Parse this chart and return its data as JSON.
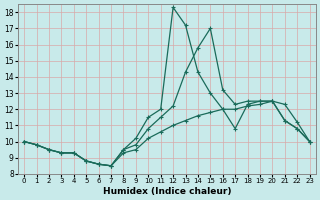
{
  "xlabel": "Humidex (Indice chaleur)",
  "background_color": "#c8eaea",
  "grid_color": "#d8a8a8",
  "line_color": "#1a6b5a",
  "xlim": [
    -0.5,
    23.5
  ],
  "ylim": [
    8.0,
    18.5
  ],
  "yticks": [
    8,
    9,
    10,
    11,
    12,
    13,
    14,
    15,
    16,
    17,
    18
  ],
  "xticks": [
    0,
    1,
    2,
    3,
    4,
    5,
    6,
    7,
    8,
    9,
    10,
    11,
    12,
    13,
    14,
    15,
    16,
    17,
    18,
    19,
    20,
    21,
    22,
    23
  ],
  "line1_x": [
    0,
    1,
    2,
    3,
    4,
    5,
    6,
    7,
    8,
    9,
    10,
    11,
    12,
    13,
    14,
    15,
    16,
    17,
    18,
    19,
    20,
    21,
    22,
    23
  ],
  "line1_y": [
    10.0,
    9.8,
    9.5,
    9.3,
    9.3,
    8.8,
    8.6,
    8.5,
    9.5,
    10.2,
    11.5,
    12.0,
    18.3,
    17.2,
    14.3,
    13.0,
    12.0,
    10.8,
    12.3,
    12.5,
    12.5,
    11.3,
    10.8,
    10.0
  ],
  "line2_x": [
    0,
    1,
    2,
    3,
    4,
    5,
    6,
    7,
    8,
    9,
    10,
    11,
    12,
    13,
    14,
    15,
    16,
    17,
    18,
    19,
    20,
    21,
    22,
    23
  ],
  "line2_y": [
    10.0,
    9.8,
    9.5,
    9.3,
    9.3,
    8.8,
    8.6,
    8.5,
    9.5,
    9.8,
    10.8,
    11.5,
    12.2,
    14.3,
    15.8,
    17.0,
    13.2,
    12.3,
    12.5,
    12.5,
    12.5,
    11.3,
    10.8,
    10.0
  ],
  "line3_x": [
    0,
    1,
    2,
    3,
    4,
    5,
    6,
    7,
    8,
    9,
    10,
    11,
    12,
    13,
    14,
    15,
    16,
    17,
    18,
    19,
    20,
    21,
    22,
    23
  ],
  "line3_y": [
    10.0,
    9.8,
    9.5,
    9.3,
    9.3,
    8.8,
    8.6,
    8.5,
    9.3,
    9.5,
    10.2,
    10.6,
    11.0,
    11.3,
    11.6,
    11.8,
    12.0,
    12.0,
    12.2,
    12.3,
    12.5,
    12.3,
    11.2,
    10.0
  ],
  "marker": "+",
  "marker_size": 3.5,
  "linewidth": 0.9,
  "figsize": [
    3.2,
    2.0
  ],
  "dpi": 100
}
